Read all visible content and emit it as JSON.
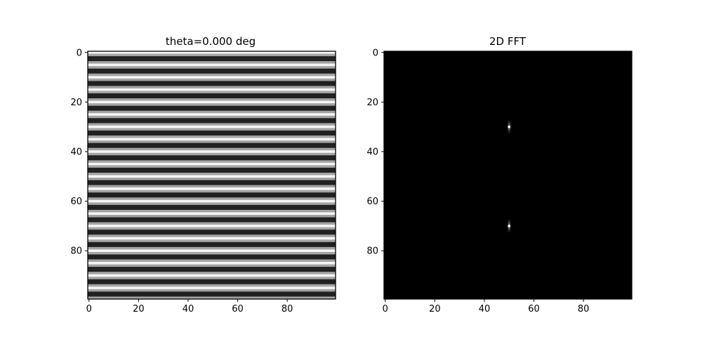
{
  "chart_data": [
    {
      "type": "heatmap",
      "title": "theta=0.000 deg",
      "xlabel": "",
      "ylabel": "",
      "size": [
        100,
        100
      ],
      "xlim": [
        -0.5,
        99.5
      ],
      "ylim": [
        99.5,
        -0.5
      ],
      "x_ticks": [
        0,
        20,
        40,
        60,
        80
      ],
      "y_ticks": [
        0,
        20,
        40,
        60,
        80
      ],
      "colormap": "gray",
      "pattern": "horizontal sinusoidal stripes, constant along x, period about 5 rows",
      "rows": 100,
      "row_brightness": "0.5*(1+cos(2*pi*row/5))",
      "grid": false
    },
    {
      "type": "heatmap",
      "title": "2D FFT",
      "xlabel": "",
      "ylabel": "",
      "size": [
        100,
        100
      ],
      "xlim": [
        -0.5,
        99.5
      ],
      "ylim": [
        99.5,
        -0.5
      ],
      "x_ticks": [
        0,
        20,
        40,
        60,
        80
      ],
      "y_ticks": [
        0,
        20,
        40,
        60,
        80
      ],
      "colormap": "gray",
      "background_value": 0,
      "peaks": [
        {
          "x": 50,
          "y": 30,
          "value": 1.0
        },
        {
          "x": 50,
          "y": 70,
          "value": 1.0
        }
      ],
      "grid": false
    }
  ]
}
